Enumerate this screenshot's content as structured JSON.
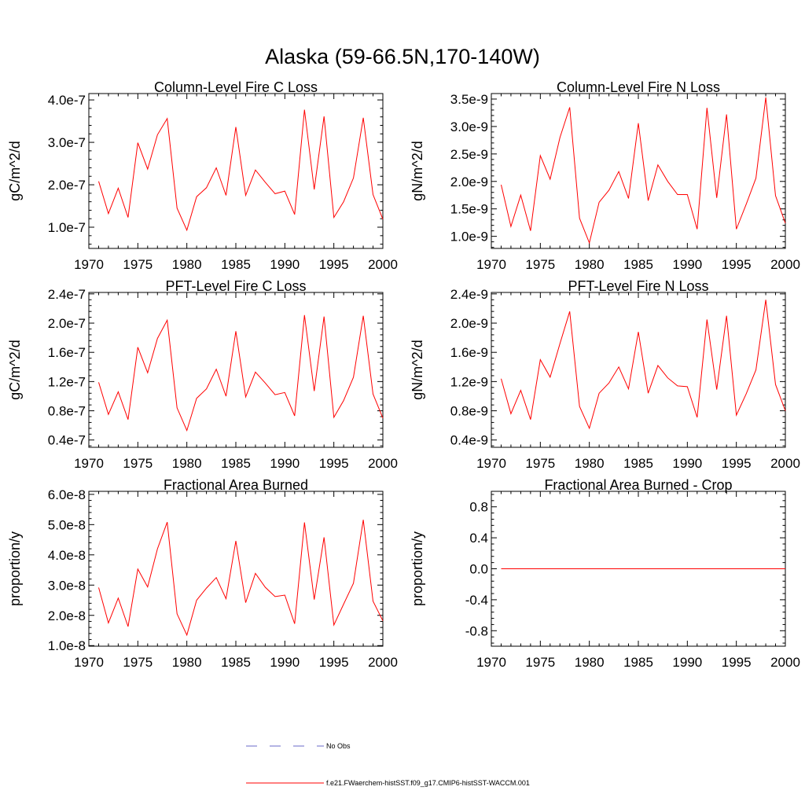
{
  "figure_title": "Alaska (59-66.5N,170-140W)",
  "legend": {
    "entries": [
      {
        "label": "No Obs",
        "color": "#6a6ac8",
        "style": "dashed"
      },
      {
        "label": "f.e21.FWaerchem-histSST.f09_g17.CMIP6-histSST-WACCM.001",
        "color": "#ff0000",
        "style": "solid"
      }
    ]
  },
  "chart_data": [
    {
      "type": "line",
      "title": "Column-Level Fire C Loss",
      "ylabel": "gC/m^2/d",
      "xlim": [
        1970,
        2000
      ],
      "ylim": [
        5e-08,
        4.15e-07
      ],
      "xticks": [
        1970,
        1975,
        1980,
        1985,
        1990,
        1995,
        2000
      ],
      "yticks": [
        1e-07,
        2e-07,
        3e-07,
        4e-07
      ],
      "yticklabels": [
        "1.0e-7",
        "2.0e-7",
        "3.0e-7",
        "4.0e-7"
      ],
      "x": [
        1971,
        1972,
        1973,
        1974,
        1975,
        1976,
        1977,
        1978,
        1979,
        1980,
        1981,
        1982,
        1983,
        1984,
        1985,
        1986,
        1987,
        1988,
        1989,
        1990,
        1991,
        1992,
        1993,
        1994,
        1995,
        1996,
        1997,
        1998,
        1999,
        2000
      ],
      "series": [
        {
          "color": "#ff0000",
          "values": [
            2.08e-07,
            1.32e-07,
            1.92e-07,
            1.23e-07,
            2.99e-07,
            2.37e-07,
            3.18e-07,
            3.56e-07,
            1.45e-07,
            9.3e-08,
            1.72e-07,
            1.93e-07,
            2.4e-07,
            1.75e-07,
            3.36e-07,
            1.75e-07,
            2.35e-07,
            2.06e-07,
            1.79e-07,
            1.85e-07,
            1.3e-07,
            3.77e-07,
            1.89e-07,
            3.61e-07,
            1.23e-07,
            1.6e-07,
            2.16e-07,
            3.58e-07,
            1.77e-07,
            1.19e-07
          ]
        }
      ]
    },
    {
      "type": "line",
      "title": "Column-Level Fire N Loss",
      "ylabel": "gN/m^2/d",
      "xlim": [
        1970,
        2000
      ],
      "ylim": [
        7.8e-10,
        3.6e-09
      ],
      "xticks": [
        1970,
        1975,
        1980,
        1985,
        1990,
        1995,
        2000
      ],
      "yticks": [
        1e-09,
        1.5e-09,
        2e-09,
        2.5e-09,
        3e-09,
        3.5e-09
      ],
      "yticklabels": [
        "1.0e-9",
        "1.5e-9",
        "2.0e-9",
        "2.5e-9",
        "3.0e-9",
        "3.5e-9"
      ],
      "x": [
        1971,
        1972,
        1973,
        1974,
        1975,
        1976,
        1977,
        1978,
        1979,
        1980,
        1981,
        1982,
        1983,
        1984,
        1985,
        1986,
        1987,
        1988,
        1989,
        1990,
        1991,
        1992,
        1993,
        1994,
        1995,
        1996,
        1997,
        1998,
        1999,
        2000
      ],
      "series": [
        {
          "color": "#ff0000",
          "values": [
            1.94e-09,
            1.18e-09,
            1.75e-09,
            1.1e-09,
            2.47e-09,
            2.04e-09,
            2.8e-09,
            3.35e-09,
            1.33e-09,
            8.8e-10,
            1.62e-09,
            1.84e-09,
            2.18e-09,
            1.69e-09,
            3.06e-09,
            1.65e-09,
            2.3e-09,
            2e-09,
            1.76e-09,
            1.76e-09,
            1.13e-09,
            3.34e-09,
            1.7e-09,
            3.22e-09,
            1.13e-09,
            1.58e-09,
            2.06e-09,
            3.53e-09,
            1.74e-09,
            1.24e-09
          ]
        }
      ]
    },
    {
      "type": "line",
      "title": "PFT-Level Fire C Loss",
      "ylabel": "gC/m^2/d",
      "xlim": [
        1970,
        2000
      ],
      "ylim": [
        3e-08,
        2.42e-07
      ],
      "xticks": [
        1970,
        1975,
        1980,
        1985,
        1990,
        1995,
        2000
      ],
      "yticks": [
        4e-08,
        8e-08,
        1.2e-07,
        1.6e-07,
        2e-07,
        2.4e-07
      ],
      "yticklabels": [
        "0.4e-7",
        "0.8e-7",
        "1.2e-7",
        "1.6e-7",
        "2.0e-7",
        "2.4e-7"
      ],
      "x": [
        1971,
        1972,
        1973,
        1974,
        1975,
        1976,
        1977,
        1978,
        1979,
        1980,
        1981,
        1982,
        1983,
        1984,
        1985,
        1986,
        1987,
        1988,
        1989,
        1990,
        1991,
        1992,
        1993,
        1994,
        1995,
        1996,
        1997,
        1998,
        1999,
        2000
      ],
      "series": [
        {
          "color": "#ff0000",
          "values": [
            1.19e-07,
            7.5e-08,
            1.06e-07,
            6.8e-08,
            1.67e-07,
            1.32e-07,
            1.79e-07,
            2.04e-07,
            8.4e-08,
            5.3e-08,
            9.7e-08,
            1.1e-07,
            1.37e-07,
            1e-07,
            1.89e-07,
            9.9e-08,
            1.33e-07,
            1.18e-07,
            1.02e-07,
            1.05e-07,
            7.3e-08,
            2.11e-07,
            1.07e-07,
            2.09e-07,
            7.1e-08,
            9.4e-08,
            1.26e-07,
            2.1e-07,
            1.03e-07,
            7e-08
          ]
        }
      ]
    },
    {
      "type": "line",
      "title": "PFT-Level Fire N Loss",
      "ylabel": "gN/m^2/d",
      "xlim": [
        1970,
        2000
      ],
      "ylim": [
        3e-10,
        2.42e-09
      ],
      "xticks": [
        1970,
        1975,
        1980,
        1985,
        1990,
        1995,
        2000
      ],
      "yticks": [
        4e-10,
        8e-10,
        1.2e-09,
        1.6e-09,
        2e-09,
        2.4e-09
      ],
      "yticklabels": [
        "0.4e-9",
        "0.8e-9",
        "1.2e-9",
        "1.6e-9",
        "2.0e-9",
        "2.4e-9"
      ],
      "x": [
        1971,
        1972,
        1973,
        1974,
        1975,
        1976,
        1977,
        1978,
        1979,
        1980,
        1981,
        1982,
        1983,
        1984,
        1985,
        1986,
        1987,
        1988,
        1989,
        1990,
        1991,
        1992,
        1993,
        1994,
        1995,
        1996,
        1997,
        1998,
        1999,
        2000
      ],
      "series": [
        {
          "color": "#ff0000",
          "values": [
            1.24e-09,
            7.6e-10,
            1.08e-09,
            6.8e-10,
            1.5e-09,
            1.26e-09,
            1.72e-09,
            2.16e-09,
            8.6e-10,
            5.6e-10,
            1.04e-09,
            1.18e-09,
            1.4e-09,
            1.1e-09,
            1.88e-09,
            1.04e-09,
            1.42e-09,
            1.25e-09,
            1.14e-09,
            1.13e-09,
            7.1e-10,
            2.05e-09,
            1.09e-09,
            2.1e-09,
            7.4e-10,
            1.03e-09,
            1.36e-09,
            2.32e-09,
            1.16e-09,
            8e-10
          ]
        }
      ]
    },
    {
      "type": "line",
      "title": "Fractional Area Burned",
      "ylabel": "proportion/y",
      "xlim": [
        1970,
        2000
      ],
      "ylim": [
        9.8e-09,
        6.1e-08
      ],
      "xticks": [
        1970,
        1975,
        1980,
        1985,
        1990,
        1995,
        2000
      ],
      "yticks": [
        1e-08,
        2e-08,
        3e-08,
        4e-08,
        5e-08,
        6e-08
      ],
      "yticklabels": [
        "1.0e-8",
        "2.0e-8",
        "3.0e-8",
        "4.0e-8",
        "5.0e-8",
        "6.0e-8"
      ],
      "x": [
        1971,
        1972,
        1973,
        1974,
        1975,
        1976,
        1977,
        1978,
        1979,
        1980,
        1981,
        1982,
        1983,
        1984,
        1985,
        1986,
        1987,
        1988,
        1989,
        1990,
        1991,
        1992,
        1993,
        1994,
        1995,
        1996,
        1997,
        1998,
        1999,
        2000
      ],
      "series": [
        {
          "color": "#ff0000",
          "values": [
            2.92e-08,
            1.75e-08,
            2.57e-08,
            1.63e-08,
            3.53e-08,
            2.94e-08,
            4.2e-08,
            5.08e-08,
            2.05e-08,
            1.35e-08,
            2.5e-08,
            2.9e-08,
            3.25e-08,
            2.55e-08,
            4.46e-08,
            2.42e-08,
            3.39e-08,
            2.93e-08,
            2.62e-08,
            2.67e-08,
            1.72e-08,
            5.07e-08,
            2.52e-08,
            4.58e-08,
            1.68e-08,
            2.37e-08,
            3.06e-08,
            5.16e-08,
            2.47e-08,
            1.82e-08
          ]
        }
      ]
    },
    {
      "type": "line",
      "title": "Fractional Area Burned - Crop",
      "ylabel": "proportion/y",
      "xlim": [
        1970,
        2000
      ],
      "ylim": [
        -1.0,
        1.0
      ],
      "xticks": [
        1970,
        1975,
        1980,
        1985,
        1990,
        1995,
        2000
      ],
      "yticks": [
        -0.8,
        -0.4,
        0.0,
        0.4,
        0.8
      ],
      "yticklabels": [
        "-0.8",
        "-0.4",
        "0.0",
        "0.4",
        "0.8"
      ],
      "x": [
        1971,
        1972,
        1973,
        1974,
        1975,
        1976,
        1977,
        1978,
        1979,
        1980,
        1981,
        1982,
        1983,
        1984,
        1985,
        1986,
        1987,
        1988,
        1989,
        1990,
        1991,
        1992,
        1993,
        1994,
        1995,
        1996,
        1997,
        1998,
        1999,
        2000
      ],
      "series": [
        {
          "color": "#ff0000",
          "values": [
            0,
            0,
            0,
            0,
            0,
            0,
            0,
            0,
            0,
            0,
            0,
            0,
            0,
            0,
            0,
            0,
            0,
            0,
            0,
            0,
            0,
            0,
            0,
            0,
            0,
            0,
            0,
            0,
            0,
            0
          ]
        }
      ]
    }
  ]
}
